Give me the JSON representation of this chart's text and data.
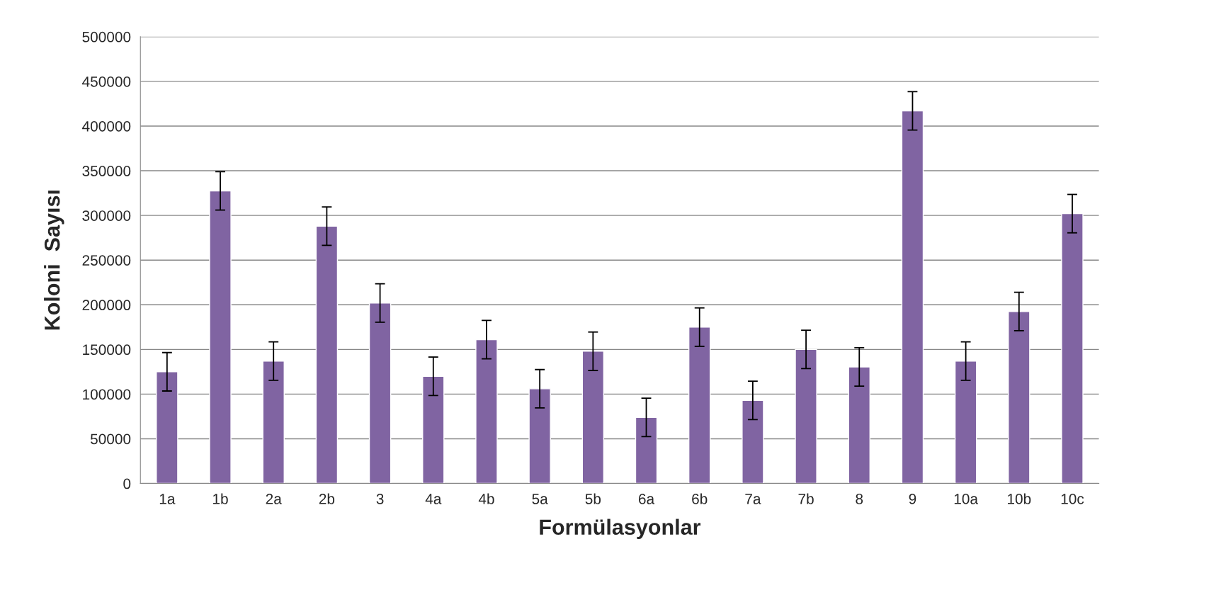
{
  "chart_data": {
    "type": "bar",
    "xlabel": "Formülasyonlar",
    "ylabel": "Koloni  Sayısı",
    "categories": [
      "1a",
      "1b",
      "2a",
      "2b",
      "3",
      "4a",
      "4b",
      "5a",
      "5b",
      "6a",
      "6b",
      "7a",
      "7b",
      "8",
      "9",
      "10a",
      "10b",
      "10c"
    ],
    "values": [
      125000,
      327500,
      137000,
      288000,
      202000,
      120000,
      161000,
      106000,
      148000,
      74000,
      175000,
      93000,
      150000,
      130500,
      417000,
      137000,
      192500,
      302000
    ],
    "errors": [
      21500,
      21500,
      21500,
      21500,
      21500,
      21500,
      21500,
      21500,
      21500,
      21500,
      21500,
      21500,
      21500,
      21500,
      21500,
      21500,
      21500,
      21500
    ],
    "color": "#8064a2",
    "ylim": [
      0,
      500000
    ],
    "yticks": [
      0,
      50000,
      100000,
      150000,
      200000,
      250000,
      300000,
      350000,
      400000,
      450000,
      500000
    ],
    "grid": "y",
    "legend": false
  }
}
